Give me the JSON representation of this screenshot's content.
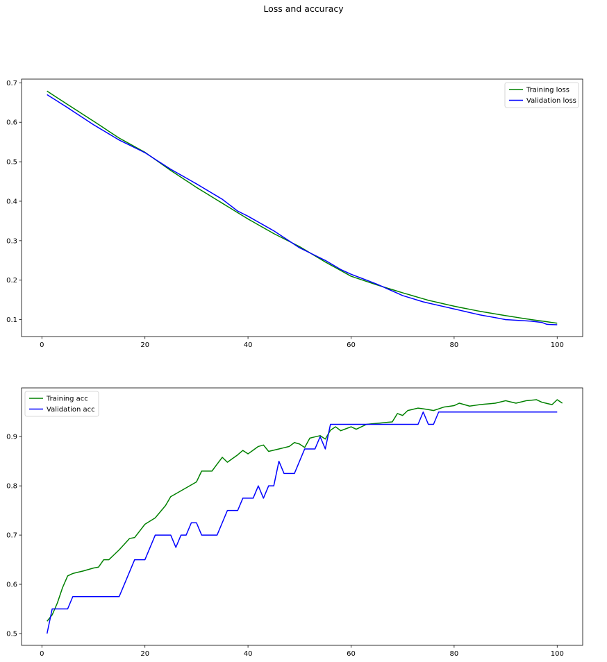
{
  "figure": {
    "suptitle": "Loss and accuracy"
  },
  "chart_data": [
    {
      "type": "line",
      "title": "",
      "xlabel": "",
      "ylabel": "",
      "xlim": [
        -3.95,
        104.95
      ],
      "ylim": [
        0.0571,
        0.7094
      ],
      "xticks": [
        0,
        20,
        40,
        60,
        80,
        100
      ],
      "yticks": [
        0.1,
        0.2,
        0.3,
        0.4,
        0.5,
        0.6,
        0.7
      ],
      "legend": "upper-right",
      "series": [
        {
          "name": "Training loss",
          "color": "#008000",
          "knots": [
            [
              1,
              0.679
            ],
            [
              5,
              0.645
            ],
            [
              10,
              0.603
            ],
            [
              15,
              0.56
            ],
            [
              20,
              0.524
            ],
            [
              25,
              0.478
            ],
            [
              30,
              0.435
            ],
            [
              35,
              0.395
            ],
            [
              40,
              0.355
            ],
            [
              45,
              0.318
            ],
            [
              50,
              0.285
            ],
            [
              55,
              0.246
            ],
            [
              60,
              0.21
            ],
            [
              65,
              0.188
            ],
            [
              70,
              0.168
            ],
            [
              75,
              0.149
            ],
            [
              80,
              0.134
            ],
            [
              85,
              0.121
            ],
            [
              90,
              0.11
            ],
            [
              95,
              0.1
            ],
            [
              100,
              0.091
            ]
          ]
        },
        {
          "name": "Validation loss",
          "color": "#0000ff",
          "knots": [
            [
              1,
              0.67
            ],
            [
              5,
              0.637
            ],
            [
              10,
              0.594
            ],
            [
              15,
              0.555
            ],
            [
              20,
              0.523
            ],
            [
              25,
              0.481
            ],
            [
              30,
              0.444
            ],
            [
              35,
              0.405
            ],
            [
              38,
              0.375
            ],
            [
              40,
              0.362
            ],
            [
              45,
              0.325
            ],
            [
              50,
              0.282
            ],
            [
              55,
              0.25
            ],
            [
              58,
              0.227
            ],
            [
              60,
              0.215
            ],
            [
              65,
              0.19
            ],
            [
              70,
              0.161
            ],
            [
              74,
              0.145
            ],
            [
              78,
              0.133
            ],
            [
              80,
              0.127
            ],
            [
              85,
              0.112
            ],
            [
              88,
              0.105
            ],
            [
              90,
              0.1
            ],
            [
              95,
              0.096
            ],
            [
              97,
              0.093
            ],
            [
              98,
              0.088
            ],
            [
              100,
              0.087
            ]
          ]
        }
      ]
    },
    {
      "type": "line",
      "title": "",
      "xlabel": "",
      "ylabel": "",
      "xlim": [
        -3.95,
        104.95
      ],
      "ylim": [
        0.476,
        0.999
      ],
      "xticks": [
        0,
        20,
        40,
        60,
        80,
        100
      ],
      "yticks": [
        0.5,
        0.6,
        0.7,
        0.8,
        0.9
      ],
      "legend": "upper-left",
      "series": [
        {
          "name": "Training acc",
          "color": "#008000",
          "knots": [
            [
              1,
              0.525
            ],
            [
              2,
              0.538
            ],
            [
              3,
              0.562
            ],
            [
              4,
              0.593
            ],
            [
              5,
              0.617
            ],
            [
              6,
              0.622
            ],
            [
              8,
              0.627
            ],
            [
              10,
              0.633
            ],
            [
              11,
              0.635
            ],
            [
              12,
              0.65
            ],
            [
              13,
              0.65
            ],
            [
              15,
              0.67
            ],
            [
              17,
              0.693
            ],
            [
              18,
              0.695
            ],
            [
              20,
              0.722
            ],
            [
              22,
              0.735
            ],
            [
              24,
              0.76
            ],
            [
              25,
              0.778
            ],
            [
              27,
              0.79
            ],
            [
              30,
              0.808
            ],
            [
              31,
              0.83
            ],
            [
              33,
              0.83
            ],
            [
              35,
              0.858
            ],
            [
              36,
              0.848
            ],
            [
              38,
              0.863
            ],
            [
              39,
              0.872
            ],
            [
              40,
              0.865
            ],
            [
              42,
              0.88
            ],
            [
              43,
              0.883
            ],
            [
              44,
              0.87
            ],
            [
              46,
              0.875
            ],
            [
              48,
              0.88
            ],
            [
              49,
              0.888
            ],
            [
              50,
              0.885
            ],
            [
              51,
              0.878
            ],
            [
              52,
              0.897
            ],
            [
              54,
              0.902
            ],
            [
              55,
              0.895
            ],
            [
              56,
              0.913
            ],
            [
              57,
              0.92
            ],
            [
              58,
              0.912
            ],
            [
              60,
              0.92
            ],
            [
              61,
              0.915
            ],
            [
              63,
              0.925
            ],
            [
              66,
              0.928
            ],
            [
              68,
              0.93
            ],
            [
              69,
              0.947
            ],
            [
              70,
              0.943
            ],
            [
              71,
              0.953
            ],
            [
              73,
              0.958
            ],
            [
              75,
              0.955
            ],
            [
              76,
              0.953
            ],
            [
              78,
              0.96
            ],
            [
              80,
              0.963
            ],
            [
              81,
              0.968
            ],
            [
              83,
              0.962
            ],
            [
              85,
              0.965
            ],
            [
              88,
              0.968
            ],
            [
              90,
              0.973
            ],
            [
              92,
              0.968
            ],
            [
              94,
              0.973
            ],
            [
              96,
              0.975
            ],
            [
              97,
              0.97
            ],
            [
              99,
              0.965
            ],
            [
              100,
              0.975
            ],
            [
              101,
              0.968
            ]
          ]
        },
        {
          "name": "Validation acc",
          "color": "#0000ff",
          "knots": [
            [
              1,
              0.5
            ],
            [
              2,
              0.55
            ],
            [
              5,
              0.55
            ],
            [
              6,
              0.575
            ],
            [
              15,
              0.575
            ],
            [
              18,
              0.65
            ],
            [
              20,
              0.65
            ],
            [
              22,
              0.7
            ],
            [
              25,
              0.7
            ],
            [
              26,
              0.675
            ],
            [
              27,
              0.7
            ],
            [
              28,
              0.7
            ],
            [
              29,
              0.725
            ],
            [
              30,
              0.725
            ],
            [
              31,
              0.7
            ],
            [
              34,
              0.7
            ],
            [
              36,
              0.75
            ],
            [
              38,
              0.75
            ],
            [
              39,
              0.775
            ],
            [
              41,
              0.775
            ],
            [
              42,
              0.8
            ],
            [
              43,
              0.775
            ],
            [
              44,
              0.8
            ],
            [
              45,
              0.8
            ],
            [
              46,
              0.85
            ],
            [
              47,
              0.825
            ],
            [
              49,
              0.825
            ],
            [
              51,
              0.875
            ],
            [
              53,
              0.875
            ],
            [
              54,
              0.9
            ],
            [
              55,
              0.875
            ],
            [
              56,
              0.925
            ],
            [
              73,
              0.925
            ],
            [
              74,
              0.95
            ],
            [
              75,
              0.925
            ],
            [
              76,
              0.925
            ],
            [
              77,
              0.95
            ],
            [
              100,
              0.95
            ]
          ]
        }
      ]
    }
  ]
}
